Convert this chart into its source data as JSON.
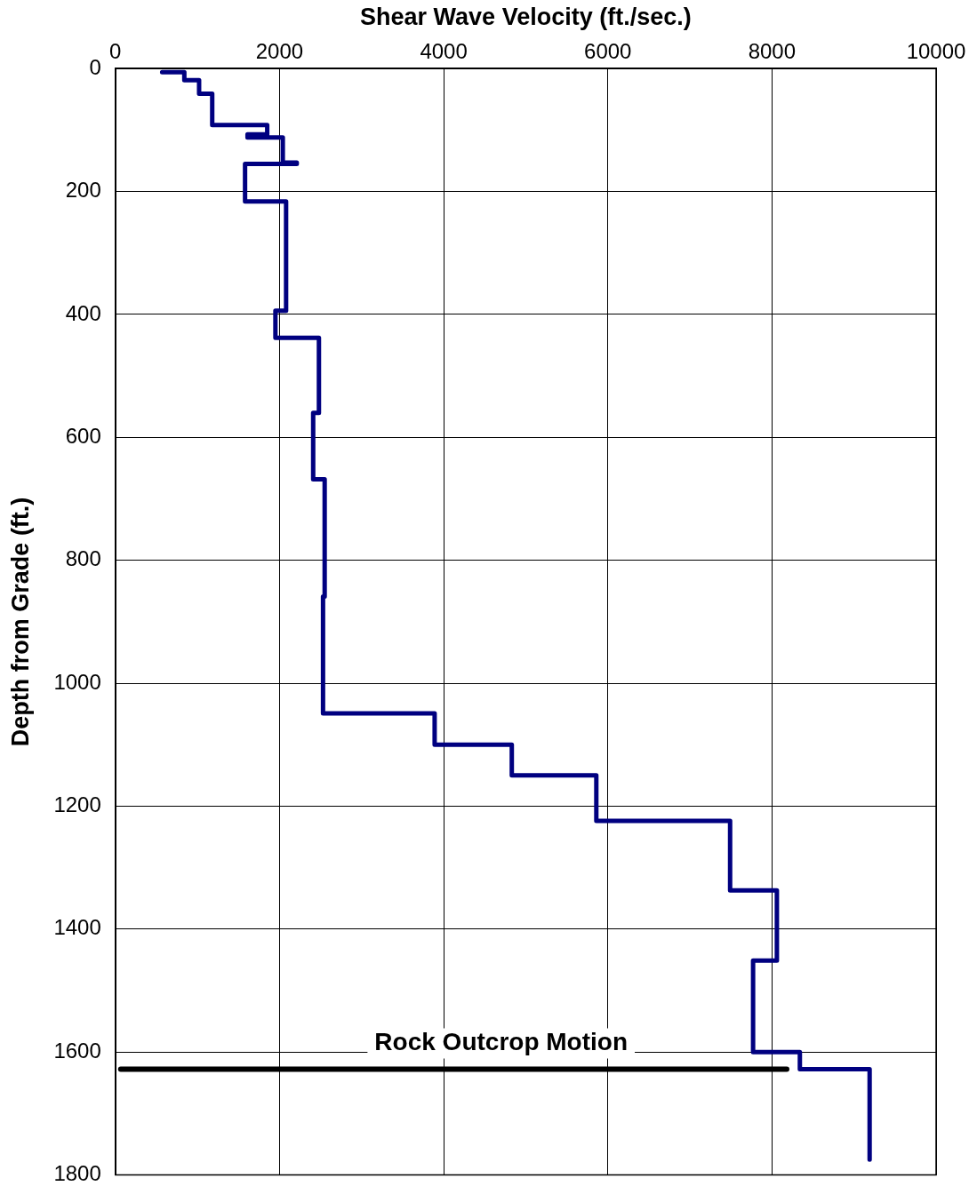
{
  "chart_data": {
    "type": "line",
    "xlabel": "Shear Wave Velocity (ft./sec.)",
    "ylabel": "Depth from Grade (ft.)",
    "xlim": [
      0,
      10000
    ],
    "xticks": [
      0,
      2000,
      4000,
      6000,
      8000,
      10000
    ],
    "ylim": [
      1800,
      0
    ],
    "yticks": [
      0,
      200,
      400,
      600,
      800,
      1000,
      1200,
      1400,
      1600,
      1800
    ],
    "grid": true,
    "marker": "none",
    "series": [
      {
        "color": "#000080",
        "x": [
          570,
          840,
          840,
          1020,
          1020,
          1180,
          1180,
          1850,
          1850,
          1610,
          1610,
          2040,
          2040,
          2210,
          2210,
          1580,
          1580,
          2080,
          2080,
          1950,
          1950,
          2480,
          2480,
          2410,
          2410,
          2550,
          2550,
          2530,
          2530,
          3890,
          3890,
          4830,
          4830,
          5860,
          5860,
          7490,
          7490,
          8060,
          8060,
          7770,
          7770,
          8340,
          8340,
          9190,
          9190
        ],
        "values": [
          6,
          6,
          19,
          19,
          41,
          41,
          92,
          92,
          107,
          107,
          112,
          112,
          153,
          153,
          155,
          155,
          216,
          216,
          394,
          394,
          438,
          438,
          560,
          560,
          668,
          668,
          859,
          859,
          1049,
          1049,
          1100,
          1100,
          1150,
          1150,
          1224,
          1224,
          1337,
          1337,
          1451,
          1451,
          1600,
          1600,
          1628,
          1628,
          1775
        ]
      },
      {
        "color": "#000000",
        "x": [
          65,
          8180
        ],
        "values": [
          1628,
          1628
        ]
      }
    ],
    "annotations": [
      "Rock Outcrop Motion"
    ]
  }
}
